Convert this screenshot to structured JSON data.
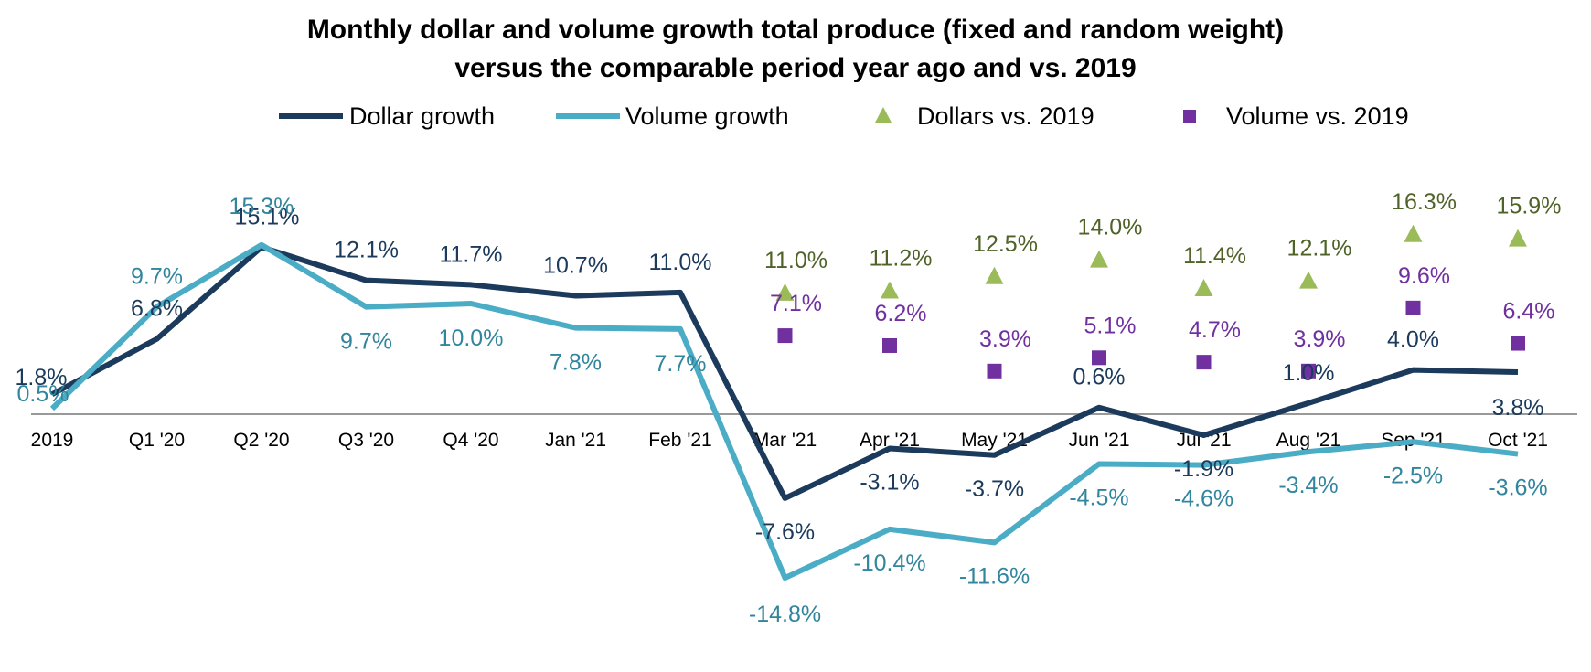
{
  "chart_data": {
    "type": "line",
    "title_lines": [
      "Monthly dollar and volume growth  total produce (fixed and random weight)",
      "versus the comparable period year ago and vs. 2019"
    ],
    "xlabel": "",
    "ylabel": "",
    "ylim": [
      -17,
      18
    ],
    "grid": false,
    "legend_position": "top",
    "categories": [
      "2019",
      "Q1 '20",
      "Q2 '20",
      "Q3 '20",
      "Q4 '20",
      "Jan '21",
      "Feb '21",
      "Mar '21",
      "Apr '21",
      "May '21",
      "Jun '21",
      "Jul '21",
      "Aug '21",
      "Sep '21",
      "Oct '21"
    ],
    "series": [
      {
        "name": "Dollar growth",
        "type": "line",
        "color": "#1b3a5c",
        "values": [
          1.8,
          6.8,
          15.1,
          12.1,
          11.7,
          10.7,
          11.0,
          -7.6,
          -3.1,
          -3.7,
          0.6,
          -1.9,
          1.0,
          4.0,
          3.8
        ],
        "labels": [
          "1.8%",
          "6.8%",
          "15.1%",
          "12.1%",
          "11.7%",
          "10.7%",
          "11.0%",
          "-7.6%",
          "-3.1%",
          "-3.7%",
          "0.6%",
          "-1.9%",
          "1.0%",
          "4.0%",
          "3.8%"
        ]
      },
      {
        "name": "Volume growth",
        "type": "line",
        "color": "#4bacc6",
        "label_color": "#31859c",
        "values": [
          0.5,
          9.7,
          15.3,
          9.7,
          10.0,
          7.8,
          7.7,
          -14.8,
          -10.4,
          -11.6,
          -4.5,
          -4.6,
          -3.4,
          -2.5,
          -3.6
        ],
        "labels": [
          "0.5%",
          "9.7%",
          "15.3%",
          "9.7%",
          "10.0%",
          "7.8%",
          "7.7%",
          "-14.8%",
          "-10.4%",
          "-11.6%",
          "-4.5%",
          "-4.6%",
          "-3.4%",
          "-2.5%",
          "-3.6%"
        ]
      },
      {
        "name": "Dollars vs. 2019",
        "type": "scatter",
        "marker": "triangle",
        "color": "#9bbb59",
        "label_color": "#4f6228",
        "values": [
          null,
          null,
          null,
          null,
          null,
          null,
          null,
          11.0,
          11.2,
          12.5,
          14.0,
          11.4,
          12.1,
          16.3,
          15.9
        ],
        "labels": [
          null,
          null,
          null,
          null,
          null,
          null,
          null,
          "11.0%",
          "11.2%",
          "12.5%",
          "14.0%",
          "11.4%",
          "12.1%",
          "16.3%",
          "15.9%"
        ]
      },
      {
        "name": "Volume vs. 2019",
        "type": "scatter",
        "marker": "square",
        "color": "#7030a0",
        "values": [
          null,
          null,
          null,
          null,
          null,
          null,
          null,
          7.1,
          6.2,
          3.9,
          5.1,
          4.7,
          3.9,
          9.6,
          6.4
        ],
        "labels": [
          null,
          null,
          null,
          null,
          null,
          null,
          null,
          "7.1%",
          "6.2%",
          "3.9%",
          "5.1%",
          "4.7%",
          "3.9%",
          "9.6%",
          "6.4%"
        ]
      }
    ]
  }
}
